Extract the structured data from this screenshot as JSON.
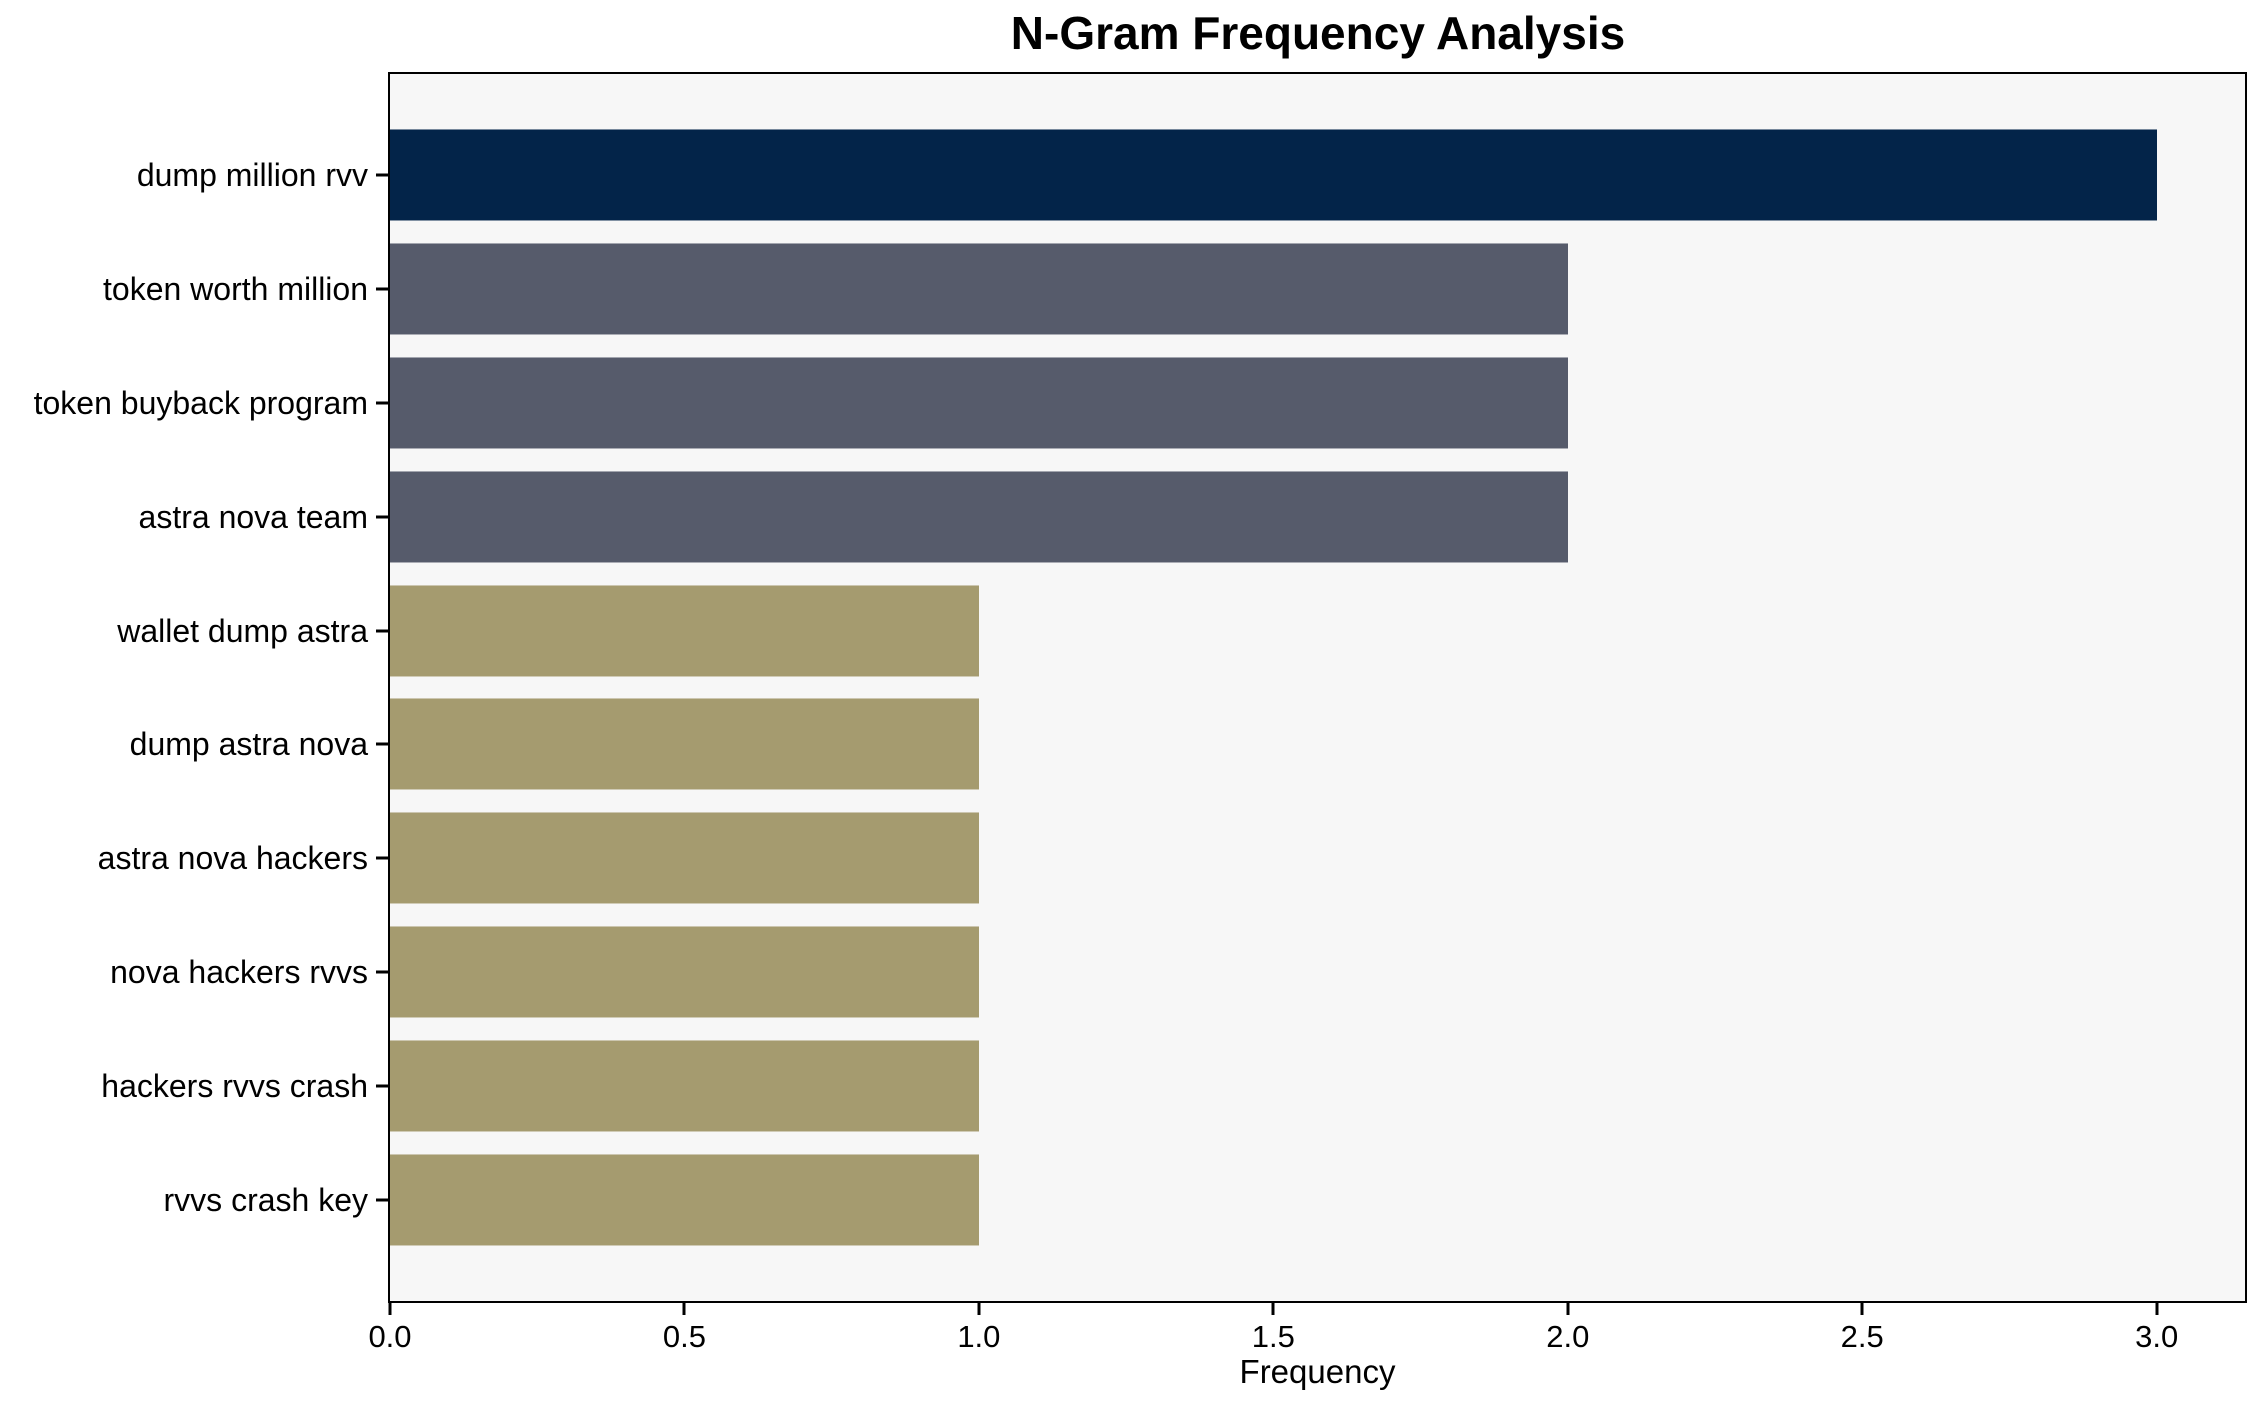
{
  "chart_data": {
    "type": "bar",
    "orientation": "horizontal",
    "title": "N-Gram Frequency Analysis",
    "xlabel": "Frequency",
    "ylabel": "",
    "categories": [
      "dump million rvv",
      "token worth million",
      "token buyback program",
      "astra nova team",
      "wallet dump astra",
      "dump astra nova",
      "astra nova hackers",
      "nova hackers rvvs",
      "hackers rvvs crash",
      "rvvs crash key"
    ],
    "values": [
      3,
      2,
      2,
      2,
      1,
      1,
      1,
      1,
      1,
      1
    ],
    "bar_colors": [
      "#032449",
      "#565b6b",
      "#565b6b",
      "#565b6b",
      "#a59b6f",
      "#a59b6f",
      "#a59b6f",
      "#a59b6f",
      "#a59b6f",
      "#a59b6f"
    ],
    "xlim": [
      0,
      3.15
    ],
    "xticks": [
      0,
      0.5,
      1,
      1.5,
      2,
      2.5,
      3
    ],
    "xtick_labels": [
      "0.0",
      "0.5",
      "1.0",
      "1.5",
      "2.0",
      "2.5",
      "3.0"
    ],
    "grid": false,
    "legend": "none",
    "bar_height_fraction": 0.8,
    "colors": {
      "plot_background": "#f7f7f7",
      "figure_background": "#ffffff",
      "spine": "#000000",
      "freq_3": "#032449",
      "freq_2": "#565b6b",
      "freq_1": "#a59b6f"
    }
  }
}
